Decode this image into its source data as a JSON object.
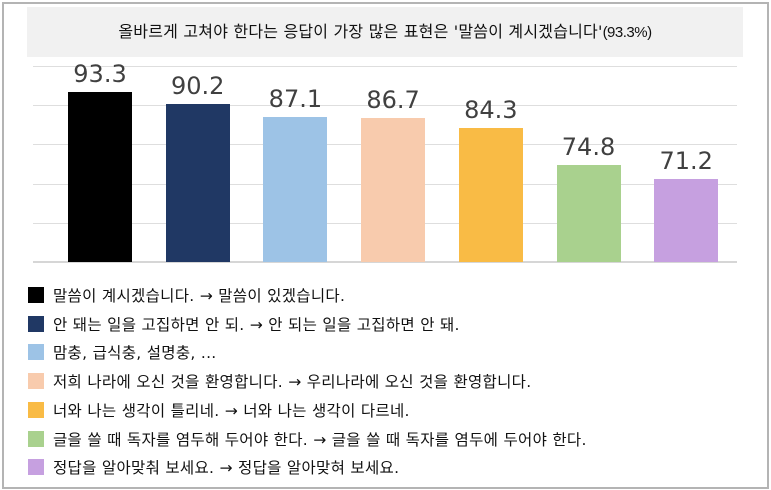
{
  "title": {
    "main": "올바르게 고쳐야 한다는 응답이 가장 많은 표현은 '말씀이 계시겠습니다'",
    "pct": "(93.3%)"
  },
  "chart_data": {
    "type": "bar",
    "title": "올바르게 고쳐야 한다는 응답이 가장 많은 표현은 '말씀이 계시겠습니다'(93.3%)",
    "xlabel": "",
    "ylabel": "",
    "ylim": [
      50,
      100
    ],
    "grid": true,
    "gridlines": [
      50,
      60,
      70,
      80,
      90,
      100
    ],
    "legend_position": "bottom",
    "categories": [
      "말씀이 계시겠습니다. → 말씀이 있겠습니다.",
      "안 돼는 일을 고집하면 안 되. → 안 되는 일을 고집하면 안 돼.",
      "맘충, 급식충, 설명충, ...",
      "저희 나라에 오신 것을 환영합니다. → 우리나라에 오신 것을 환영합니다.",
      "너와 나는 생각이 틀리네. → 너와 나는 생각이 다르네.",
      "글을 쓸 때 독자를 염두해 두어야 한다. → 글을 쓸 때 독자를 염두에 두어야 한다.",
      "정답을 알아맞춰 보세요. → 정답을 알아맞혀 보세요."
    ],
    "values": [
      93.3,
      90.2,
      87.1,
      86.7,
      84.3,
      74.8,
      71.2
    ],
    "labels": [
      "93.3",
      "90.2",
      "87.1",
      "86.7",
      "84.3",
      "74.8",
      "71.2"
    ],
    "colors": [
      "#000000",
      "#203864",
      "#9dc3e6",
      "#f8cbad",
      "#f9bb45",
      "#a9d18e",
      "#c6a0e0"
    ]
  },
  "legend": [
    {
      "text": "말씀이 계시겠습니다. → 말씀이 있겠습니다.",
      "color": "#000000"
    },
    {
      "text": "안 돼는 일을 고집하면 안 되. → 안 되는 일을 고집하면 안 돼.",
      "color": "#203864"
    },
    {
      "text": "맘충, 급식충, 설명충, ...",
      "color": "#9dc3e6"
    },
    {
      "text": "저희 나라에 오신 것을 환영합니다. → 우리나라에 오신 것을 환영합니다.",
      "color": "#f8cbad"
    },
    {
      "text": "너와 나는 생각이 틀리네. → 너와 나는 생각이 다르네.",
      "color": "#f9bb45"
    },
    {
      "text": "글을 쓸 때 독자를 염두해 두어야 한다. → 글을 쓸 때 독자를 염두에 두어야 한다.",
      "color": "#a9d18e"
    },
    {
      "text": "정답을 알아맞춰 보세요. → 정답을 알아맞혀 보세요.",
      "color": "#c6a0e0"
    }
  ]
}
